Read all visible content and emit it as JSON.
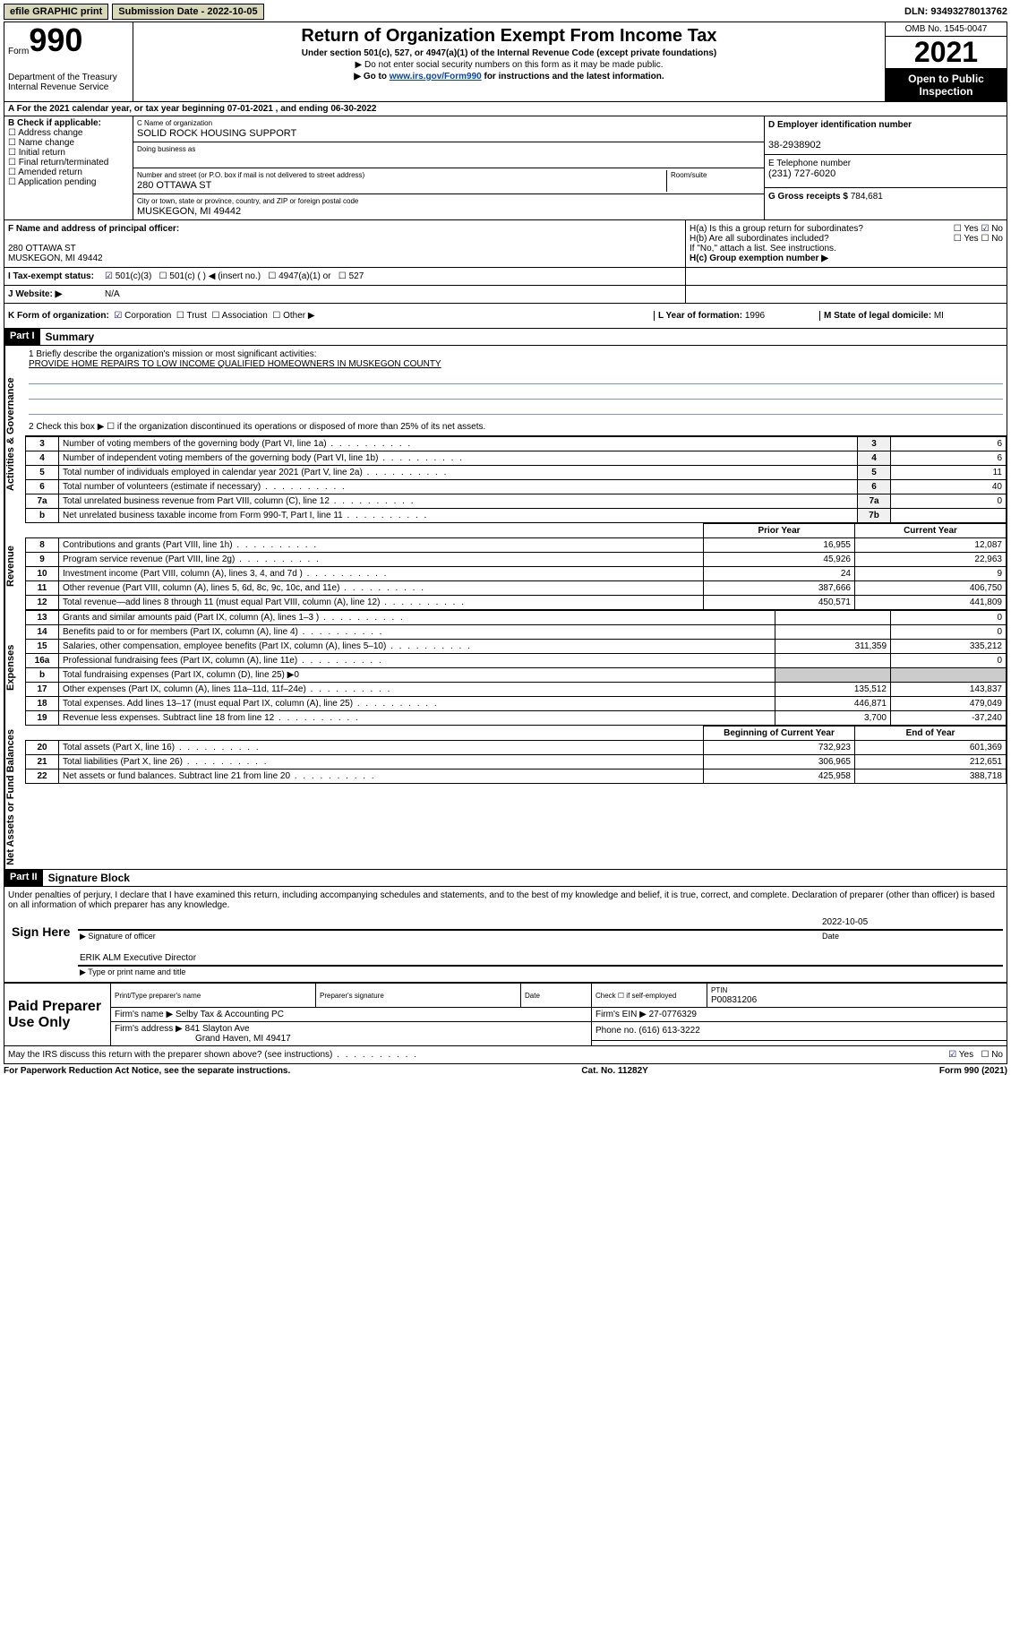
{
  "topbar": {
    "efile": "efile GRAPHIC print",
    "subdate_lbl": "Submission Date - ",
    "subdate": "2022-10-05",
    "dln_lbl": "DLN: ",
    "dln": "93493278013762"
  },
  "header": {
    "form": "Form",
    "form_num": "990",
    "dept": "Department of the Treasury",
    "irs": "Internal Revenue Service",
    "title": "Return of Organization Exempt From Income Tax",
    "sub": "Under section 501(c), 527, or 4947(a)(1) of the Internal Revenue Code (except private foundations)",
    "note1": "▶ Do not enter social security numbers on this form as it may be made public.",
    "note2_pre": "▶ Go to ",
    "note2_link": "www.irs.gov/Form990",
    "note2_post": " for instructions and the latest information.",
    "omb": "OMB No. 1545-0047",
    "year": "2021",
    "open_public": "Open to Public Inspection"
  },
  "row_a": "A  For the 2021 calendar year, or tax year beginning 07-01-2021  , and ending 06-30-2022",
  "col_b": {
    "title": "B Check if applicable:",
    "items": [
      "Address change",
      "Name change",
      "Initial return",
      "Final return/terminated",
      "Amended return",
      "Application pending"
    ]
  },
  "col_c": {
    "name_lbl": "C Name of organization",
    "name": "SOLID ROCK HOUSING SUPPORT",
    "dba_lbl": "Doing business as",
    "addr_lbl": "Number and street (or P.O. box if mail is not delivered to street address)",
    "room_lbl": "Room/suite",
    "addr": "280 OTTAWA ST",
    "city_lbl": "City or town, state or province, country, and ZIP or foreign postal code",
    "city": "MUSKEGON, MI  49442"
  },
  "col_d": {
    "ein_lbl": "D Employer identification number",
    "ein": "38-2938902",
    "tel_lbl": "E Telephone number",
    "tel": "(231) 727-6020",
    "gross_lbl": "G Gross receipts $ ",
    "gross": "784,681"
  },
  "section_fh": {
    "f_lbl": "F Name and address of principal officer:",
    "f_addr1": "280 OTTAWA ST",
    "f_addr2": "MUSKEGON, MI  49442",
    "ha_lbl": "H(a)  Is this a group return for subordinates?",
    "ha_yes": "Yes",
    "ha_no": "No",
    "hb_lbl": "H(b)  Are all subordinates included?",
    "hb_yes": "Yes",
    "hb_no": "No",
    "hb_note": "If \"No,\" attach a list. See instructions.",
    "hc_lbl": "H(c)  Group exemption number ▶"
  },
  "status": {
    "i_lbl": "I  Tax-exempt status:",
    "c3": "501(c)(3)",
    "c": "501(c) (   ) ◀ (insert no.)",
    "a1": "4947(a)(1) or",
    "s527": "527",
    "j_lbl": "J  Website: ▶",
    "j_val": "N/A"
  },
  "korg": {
    "k_lbl": "K Form of organization:",
    "corp": "Corporation",
    "trust": "Trust",
    "assoc": "Association",
    "other": "Other ▶",
    "l_lbl": "L Year of formation: ",
    "l_val": "1996",
    "m_lbl": "M State of legal domicile: ",
    "m_val": "MI"
  },
  "part1": {
    "header": "Part I",
    "title": "Summary",
    "q1_lbl": "1  Briefly describe the organization's mission or most significant activities:",
    "q1_val": "PROVIDE HOME REPAIRS TO LOW INCOME QUALIFIED HOMEOWNERS IN MUSKEGON COUNTY",
    "q2": "2  Check this box ▶ ☐  if the organization discontinued its operations or disposed of more than 25% of its net assets.",
    "sidebar_act": "Activities & Governance",
    "sidebar_rev": "Revenue",
    "sidebar_exp": "Expenses",
    "sidebar_net": "Net Assets or Fund Balances",
    "rows_gov": [
      {
        "n": "3",
        "d": "Number of voting members of the governing body (Part VI, line 1a)",
        "l": "3",
        "v": "6"
      },
      {
        "n": "4",
        "d": "Number of independent voting members of the governing body (Part VI, line 1b)",
        "l": "4",
        "v": "6"
      },
      {
        "n": "5",
        "d": "Total number of individuals employed in calendar year 2021 (Part V, line 2a)",
        "l": "5",
        "v": "11"
      },
      {
        "n": "6",
        "d": "Total number of volunteers (estimate if necessary)",
        "l": "6",
        "v": "40"
      },
      {
        "n": "7a",
        "d": "Total unrelated business revenue from Part VIII, column (C), line 12",
        "l": "7a",
        "v": "0"
      },
      {
        "n": "b",
        "d": "Net unrelated business taxable income from Form 990-T, Part I, line 11",
        "l": "7b",
        "v": ""
      }
    ],
    "col_prior": "Prior Year",
    "col_curr": "Current Year",
    "rows_rev": [
      {
        "n": "8",
        "d": "Contributions and grants (Part VIII, line 1h)",
        "p": "16,955",
        "c": "12,087"
      },
      {
        "n": "9",
        "d": "Program service revenue (Part VIII, line 2g)",
        "p": "45,926",
        "c": "22,963"
      },
      {
        "n": "10",
        "d": "Investment income (Part VIII, column (A), lines 3, 4, and 7d )",
        "p": "24",
        "c": "9"
      },
      {
        "n": "11",
        "d": "Other revenue (Part VIII, column (A), lines 5, 6d, 8c, 9c, 10c, and 11e)",
        "p": "387,666",
        "c": "406,750"
      },
      {
        "n": "12",
        "d": "Total revenue—add lines 8 through 11 (must equal Part VIII, column (A), line 12)",
        "p": "450,571",
        "c": "441,809"
      }
    ],
    "rows_exp": [
      {
        "n": "13",
        "d": "Grants and similar amounts paid (Part IX, column (A), lines 1–3 )",
        "p": "",
        "c": "0"
      },
      {
        "n": "14",
        "d": "Benefits paid to or for members (Part IX, column (A), line 4)",
        "p": "",
        "c": "0"
      },
      {
        "n": "15",
        "d": "Salaries, other compensation, employee benefits (Part IX, column (A), lines 5–10)",
        "p": "311,359",
        "c": "335,212"
      },
      {
        "n": "16a",
        "d": "Professional fundraising fees (Part IX, column (A), line 11e)",
        "p": "",
        "c": "0"
      },
      {
        "n": "b",
        "d": "Total fundraising expenses (Part IX, column (D), line 25) ▶0",
        "p": "—",
        "c": "—"
      },
      {
        "n": "17",
        "d": "Other expenses (Part IX, column (A), lines 11a–11d, 11f–24e)",
        "p": "135,512",
        "c": "143,837"
      },
      {
        "n": "18",
        "d": "Total expenses. Add lines 13–17 (must equal Part IX, column (A), line 25)",
        "p": "446,871",
        "c": "479,049"
      },
      {
        "n": "19",
        "d": "Revenue less expenses. Subtract line 18 from line 12",
        "p": "3,700",
        "c": "-37,240"
      }
    ],
    "col_begin": "Beginning of Current Year",
    "col_end": "End of Year",
    "rows_net": [
      {
        "n": "20",
        "d": "Total assets (Part X, line 16)",
        "p": "732,923",
        "c": "601,369"
      },
      {
        "n": "21",
        "d": "Total liabilities (Part X, line 26)",
        "p": "306,965",
        "c": "212,651"
      },
      {
        "n": "22",
        "d": "Net assets or fund balances. Subtract line 21 from line 20",
        "p": "425,958",
        "c": "388,718"
      }
    ]
  },
  "part2": {
    "header": "Part II",
    "title": "Signature Block",
    "declare": "Under penalties of perjury, I declare that I have examined this return, including accompanying schedules and statements, and to the best of my knowledge and belief, it is true, correct, and complete. Declaration of preparer (other than officer) is based on all information of which preparer has any knowledge.",
    "sign_here": "Sign Here",
    "sig_officer": "Signature of officer",
    "sig_date_lbl": "Date",
    "sig_date": "2022-10-05",
    "name_title": "ERIK ALM  Executive Director",
    "name_title_lbl": "Type or print name and title",
    "paid": "Paid Preparer Use Only",
    "prep_name_lbl": "Print/Type preparer's name",
    "prep_sig_lbl": "Preparer's signature",
    "prep_date_lbl": "Date",
    "prep_check": "Check ☐ if self-employed",
    "ptin_lbl": "PTIN",
    "ptin": "P00831206",
    "firm_name_lbl": "Firm's name    ▶ ",
    "firm_name": "Selby Tax & Accounting PC",
    "firm_ein_lbl": "Firm's EIN ▶ ",
    "firm_ein": "27-0776329",
    "firm_addr_lbl": "Firm's address ▶ ",
    "firm_addr1": "841 Slayton Ave",
    "firm_addr2": "Grand Haven, MI  49417",
    "phone_lbl": "Phone no. ",
    "phone": "(616) 613-3222",
    "discuss": "May the IRS discuss this return with the preparer shown above? (see instructions)",
    "d_yes": "Yes",
    "d_no": "No"
  },
  "footer": {
    "pra": "For Paperwork Reduction Act Notice, see the separate instructions.",
    "cat": "Cat. No. 11282Y",
    "form": "Form 990 (2021)"
  }
}
